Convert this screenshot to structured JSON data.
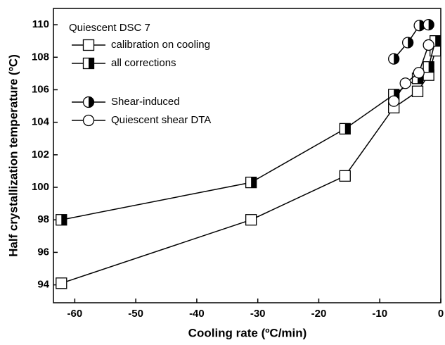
{
  "chart_data": {
    "type": "line",
    "x_label": "Cooling rate (ºC/min)",
    "y_label": "Half crystallization temperature (ºC)",
    "legend_title": "Quiescent DSC 7",
    "xlim": [
      -63.5,
      0
    ],
    "xticks": [
      -60,
      -50,
      -40,
      -30,
      -20,
      -10,
      0
    ],
    "ylim": [
      92.9,
      111
    ],
    "yticks": [
      94,
      96,
      98,
      100,
      102,
      104,
      106,
      108,
      110
    ],
    "series": [
      {
        "name": "calibration on cooling",
        "color": "#000000",
        "marker": "square-open",
        "x": [
          -62.2,
          -31.1,
          -15.7,
          -7.7,
          -3.8,
          -2.0,
          -0.9
        ],
        "values": [
          94.1,
          98.0,
          100.7,
          104.9,
          105.9,
          106.9,
          108.4
        ]
      },
      {
        "name": "all corrections",
        "color": "#000000",
        "marker": "square-half",
        "x": [
          -62.2,
          -31.1,
          -15.7,
          -7.7,
          -3.8,
          -2.0,
          -0.9
        ],
        "values": [
          98.0,
          100.3,
          103.6,
          105.7,
          106.7,
          107.4,
          109.0
        ]
      },
      {
        "name": "Shear-induced",
        "color": "#000000",
        "marker": "circle-half",
        "x": [
          -7.7,
          -5.4,
          -3.5,
          -2.0
        ],
        "values": [
          107.9,
          108.9,
          109.95,
          110.0
        ]
      },
      {
        "name": "Quiescent shear DTA",
        "color": "#000000",
        "marker": "circle-open",
        "x": [
          -7.7,
          -5.8,
          -3.6,
          -2.0
        ],
        "values": [
          105.3,
          106.4,
          107.05,
          108.75
        ]
      }
    ]
  }
}
